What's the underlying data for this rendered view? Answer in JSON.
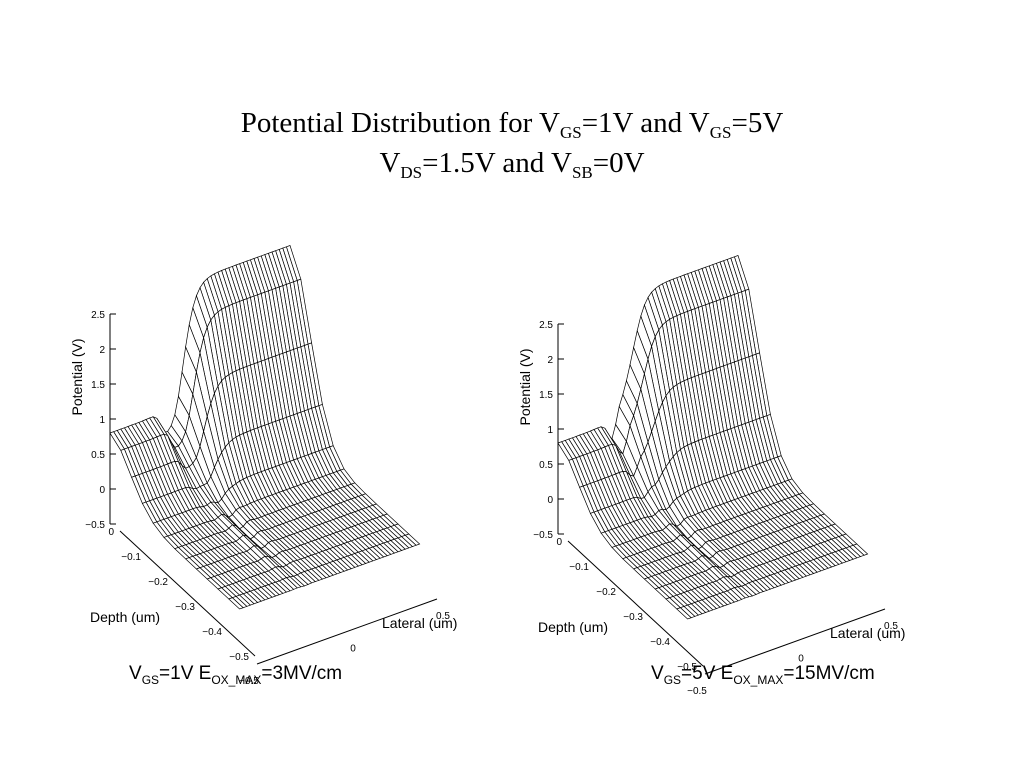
{
  "title": {
    "line1": [
      {
        "t": "Potential Distribution for V"
      },
      {
        "sub": "GS"
      },
      {
        "t": "=1V and V"
      },
      {
        "sub": "GS"
      },
      {
        "t": "=5V"
      }
    ],
    "line2": [
      {
        "t": "V"
      },
      {
        "sub": "DS"
      },
      {
        "t": "=1.5V and V"
      },
      {
        "sub": "SB"
      },
      {
        "t": "=0V"
      }
    ]
  },
  "captions": {
    "left": [
      {
        "t": "V"
      },
      {
        "sub": "GS"
      },
      {
        "t": "=1V E"
      },
      {
        "sub": "OX_MAX"
      },
      {
        "t": "=3MV/cm"
      }
    ],
    "right": [
      {
        "t": "V"
      },
      {
        "sub": "GS"
      },
      {
        "t": "=5V E"
      },
      {
        "sub": "OX_MAX"
      },
      {
        "t": "=15MV/cm"
      }
    ]
  },
  "chart_data": [
    {
      "type": "surface",
      "zlabel": "Potential (V)",
      "xlabel": "Lateral (um)",
      "ylabel": "Depth (um)",
      "zticks": [
        "2.5",
        "2",
        "1.5",
        "1",
        "0.5",
        "0",
        "−0.5"
      ],
      "yticks": [
        "0",
        "−0.1",
        "−0.2",
        "−0.3",
        "−0.4",
        "−0.5"
      ],
      "xticks": [
        "−0.5",
        "0",
        "0.5"
      ],
      "xlim": [
        -0.5,
        0.5
      ],
      "ylim": [
        -0.5,
        0
      ],
      "zlim": [
        -0.5,
        2.5
      ],
      "surface": {
        "left_plateau_potential": 0.8,
        "junction_potential": 1.0,
        "right_plateau_potential": 2.55,
        "bulk_potential": 0.0,
        "channel_step": 0.0
      }
    },
    {
      "type": "surface",
      "zlabel": "Potential (V)",
      "xlabel": "Lateral (um)",
      "ylabel": "Depth (um)",
      "zticks": [
        "2.5",
        "2",
        "1.5",
        "1",
        "0.5",
        "0",
        "−0.5"
      ],
      "yticks": [
        "0",
        "−0.1",
        "−0.2",
        "−0.3",
        "−0.4",
        "−0.5"
      ],
      "xticks": [
        "−0.5",
        "0",
        "0.5"
      ],
      "xlim": [
        -0.5,
        0.5
      ],
      "ylim": [
        -0.5,
        0
      ],
      "zlim": [
        -0.5,
        2.5
      ],
      "surface": {
        "left_plateau_potential": 0.8,
        "junction_potential": 1.0,
        "right_plateau_potential": 2.55,
        "bulk_potential": 0.0,
        "channel_step": 0.5
      }
    }
  ]
}
